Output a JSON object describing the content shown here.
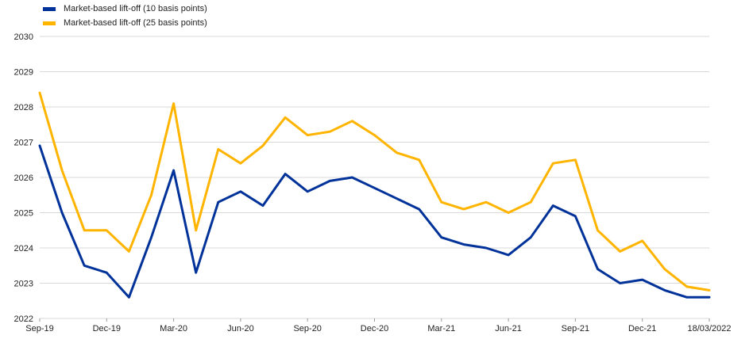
{
  "chart_data": {
    "type": "line",
    "title": "",
    "xlabel": "",
    "ylabel": "",
    "ylim": [
      2022,
      2030
    ],
    "y_ticks": [
      "2022",
      "2023",
      "2024",
      "2025",
      "2026",
      "2027",
      "2028",
      "2029",
      "2030"
    ],
    "x_ticks": [
      "Sep-19",
      "Dec-19",
      "Mar-20",
      "Jun-20",
      "Sep-20",
      "Dec-20",
      "Mar-21",
      "Jun-21",
      "Sep-21",
      "Dec-21",
      "18/03/2022"
    ],
    "grid": "horizontal",
    "legend_position": "top-left",
    "x": [
      "Sep-19",
      "Oct-19",
      "Nov-19",
      "Dec-19",
      "Jan-20",
      "Feb-20",
      "Mar-20",
      "Apr-20",
      "May-20",
      "Jun-20",
      "Jul-20",
      "Aug-20",
      "Sep-20",
      "Oct-20",
      "Nov-20",
      "Dec-20",
      "Jan-21",
      "Feb-21",
      "Mar-21",
      "Apr-21",
      "May-21",
      "Jun-21",
      "Jul-21",
      "Aug-21",
      "Sep-21",
      "Oct-21",
      "Nov-21",
      "Dec-21",
      "Jan-22",
      "Feb-22",
      "18/03/2022"
    ],
    "series": [
      {
        "name": "Market-based lift-off (10 basis points)",
        "color": "#003299",
        "values": [
          2026.9,
          2025.0,
          2023.5,
          2023.3,
          2022.6,
          2024.3,
          2026.2,
          2023.3,
          2025.3,
          2025.6,
          2025.2,
          2026.1,
          2025.6,
          2025.9,
          2026.0,
          2025.7,
          2025.4,
          2025.1,
          2024.3,
          2024.1,
          2024.0,
          2023.8,
          2024.3,
          2025.2,
          2024.9,
          2023.4,
          2023.0,
          2023.1,
          2022.8,
          2022.6,
          2022.6
        ]
      },
      {
        "name": "Market-based lift-off (25 basis points)",
        "color": "#FFB400",
        "values": [
          2028.4,
          2026.2,
          2024.5,
          2024.5,
          2023.9,
          2025.5,
          2028.1,
          2024.5,
          2026.8,
          2026.4,
          2026.9,
          2027.7,
          2027.2,
          2027.3,
          2027.6,
          2027.2,
          2026.7,
          2026.5,
          2025.3,
          2025.1,
          2025.3,
          2025.0,
          2025.3,
          2026.4,
          2026.5,
          2024.5,
          2023.9,
          2024.2,
          2023.4,
          2022.9,
          2022.8
        ]
      }
    ]
  }
}
